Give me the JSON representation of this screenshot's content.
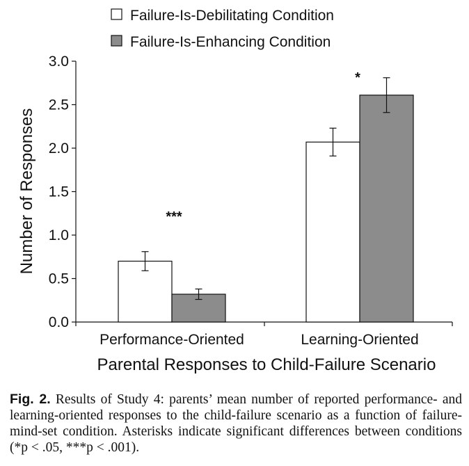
{
  "chart_data": {
    "type": "bar",
    "categories": [
      "Performance-Oriented",
      "Learning-Oriented"
    ],
    "series": [
      {
        "name": "Failure-Is-Debilitating Condition",
        "values": [
          0.7,
          2.07
        ],
        "error": [
          0.11,
          0.16
        ],
        "color": "#ffffff"
      },
      {
        "name": "Failure-Is-Enhancing Condition",
        "values": [
          0.32,
          2.61
        ],
        "error": [
          0.06,
          0.2
        ],
        "color": "#8c8c8c"
      }
    ],
    "significance": [
      "***",
      "*"
    ],
    "xlabel": "Parental Responses to Child-Failure Scenario",
    "ylabel": "Number of Responses",
    "ylim": [
      0,
      3.0
    ],
    "yticks": [
      "0.0",
      "0.5",
      "1.0",
      "1.5",
      "2.0",
      "2.5",
      "3.0"
    ],
    "legend_position": "top"
  },
  "caption": {
    "label": "Fig. 2.",
    "text": "Results of Study 4: parents’ mean number of reported performance- and learning-oriented responses to the child-failure scenario as a function of failure-mind-set condition. Asterisks indicate significant differences between conditions (*p < .05, ***p < .001)."
  }
}
